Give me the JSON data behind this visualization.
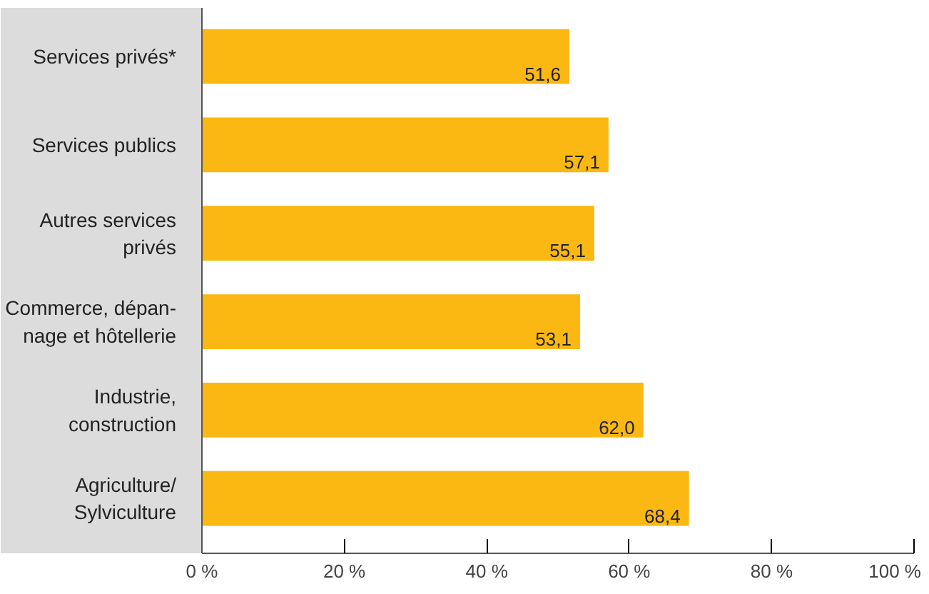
{
  "chart_data": {
    "type": "bar",
    "orientation": "horizontal",
    "categories": [
      "Services privés*",
      "Services publics",
      "Autres services\nprivés",
      "Commerce, dépan-\nnage et hôtellerie",
      "Industrie,\nconstruction",
      "Agriculture/\nSylviculture"
    ],
    "values": [
      51.6,
      57.1,
      55.1,
      53.1,
      62.0,
      68.4
    ],
    "value_labels": [
      "51,6",
      "57,1",
      "55,1",
      "53,1",
      "62,0",
      "68,4"
    ],
    "color": "#fbb813",
    "xlim": [
      0,
      100
    ],
    "xticks": [
      {
        "value": 0,
        "label": "0 %"
      },
      {
        "value": 20,
        "label": "20 %"
      },
      {
        "value": 40,
        "label": "40 %"
      },
      {
        "value": 60,
        "label": "60 %"
      },
      {
        "value": 80,
        "label": "80 %"
      },
      {
        "value": 100,
        "label": "100 %"
      }
    ],
    "grid": false
  }
}
